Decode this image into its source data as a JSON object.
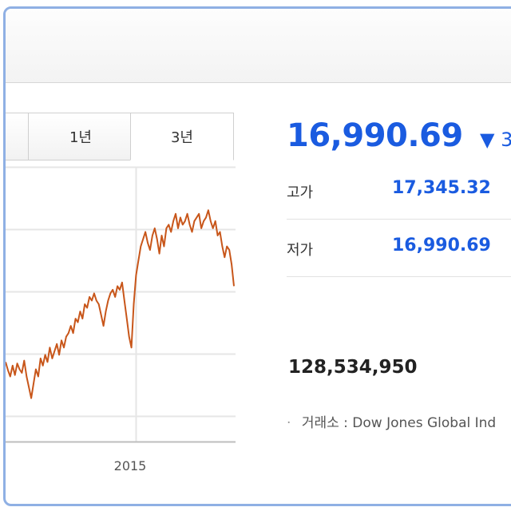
{
  "tabs": [
    {
      "label": ""
    },
    {
      "label": "1년"
    },
    {
      "label": "3년"
    }
  ],
  "selected_tab": "3년",
  "quote": {
    "price": "16,990.69",
    "change_arrow": "▼",
    "change_text": "3"
  },
  "stats": [
    {
      "label": "고가",
      "value": "17,345.32"
    },
    {
      "label": "저가",
      "value": "16,990.69"
    }
  ],
  "volume": "128,534,950",
  "source_text": "거래소 : Dow Jones Global Ind",
  "colors": {
    "accent_blue": "#1a5be0",
    "line": "#c8561a",
    "frame": "#8fb0e4"
  },
  "chart_data": {
    "type": "line",
    "x_tick_labels": [
      "2015"
    ],
    "series": [
      {
        "values": [
          16100,
          15990,
          15900,
          16050,
          15920,
          16080,
          16000,
          15950,
          16120,
          15900,
          15750,
          15600,
          15800,
          16000,
          15900,
          16150,
          16050,
          16200,
          16100,
          16300,
          16150,
          16250,
          16350,
          16200,
          16400,
          16300,
          16450,
          16500,
          16600,
          16500,
          16700,
          16650,
          16800,
          16700,
          16900,
          16850,
          17000,
          16950,
          17050,
          16950,
          16900,
          16750,
          16600,
          16800,
          16950,
          17050,
          17100,
          17000,
          17150,
          17100,
          17200,
          16950,
          16700,
          16450,
          16300,
          16900,
          17300,
          17500,
          17700,
          17800,
          17900,
          17750,
          17650,
          17850,
          17950,
          17800,
          17600,
          17850,
          17700,
          17950,
          18000,
          17900,
          18050,
          18150,
          17950,
          18100,
          18000,
          18050,
          18150,
          18000,
          17900,
          18050,
          18100,
          18150,
          17950,
          18050,
          18100,
          18200,
          18050,
          17950,
          18050,
          17850,
          17900,
          17700,
          17550,
          17700,
          17650,
          17450,
          17150
        ]
      }
    ],
    "ylim": [
      15000,
      18800
    ],
    "grid": true
  }
}
